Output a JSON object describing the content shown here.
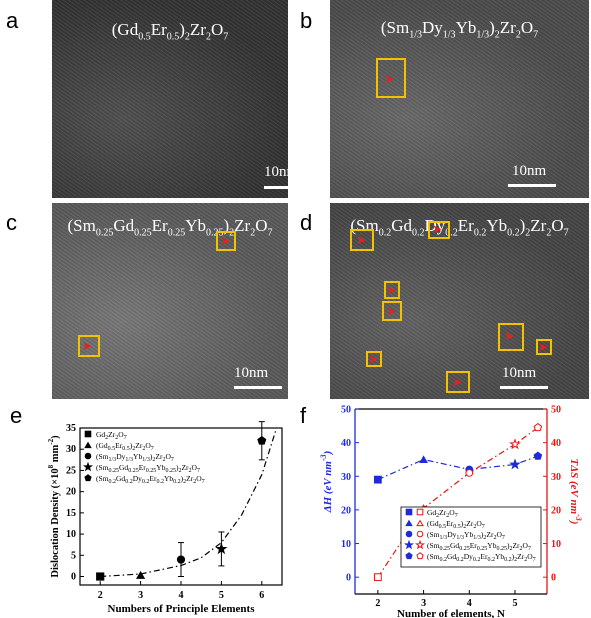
{
  "panels": {
    "a": {
      "letter": "a",
      "title_html": "(Gd<sub>0.5</sub>Er<sub>0.5</sub>)<sub>2</sub>Zr<sub>2</sub>O<sub>7</sub>",
      "scale": "10nm",
      "tone": "#3d3d3d"
    },
    "b": {
      "letter": "b",
      "title_html": "(Sm<sub>1/3</sub>Dy<sub>1/3</sub>Yb<sub>1/3</sub>)<sub>2</sub>Zr<sub>2</sub>O<sub>7</sub>",
      "scale": "10nm",
      "tone": "#595959"
    },
    "c": {
      "letter": "c",
      "title_html": "(Sm<sub>0.25</sub>Gd<sub>0.25</sub>Er<sub>0.25</sub>Yb<sub>0.25</sub>)<sub>2</sub>Zr<sub>2</sub>O<sub>7</sub>",
      "scale": "10nm",
      "tone": "#6a6a6a"
    },
    "d": {
      "letter": "d",
      "title_html": "(Sm<sub>0.2</sub>Gd<sub>0.2</sub>Dy<sub>0.2</sub>Er<sub>0.2</sub>Yb<sub>0.2</sub>)<sub>2</sub>Zr<sub>2</sub>O<sub>7</sub>",
      "scale": "10nm",
      "tone": "#525252"
    },
    "e": {
      "letter": "e"
    },
    "f": {
      "letter": "f"
    }
  },
  "colors": {
    "box": "#f2c200",
    "arrow": "#e8201e",
    "dH": "#1f2bd8",
    "TdS": "#e01818"
  },
  "chart_data": [
    {
      "type": "scatter",
      "ylabel_html": "Dislocation Density (×10<tspan dy='-5' font-size='7'>8</tspan><tspan dy='5'> mm</tspan><tspan dy='-5' font-size='7'>-2</tspan><tspan dy='5'>)</tspan>",
      "xlabel": "Numbers of Principle Elements",
      "xlim": [
        1.5,
        6.5
      ],
      "ylim": [
        -2,
        35
      ],
      "xticks": [
        2,
        3,
        4,
        5,
        6
      ],
      "yticks": [
        0,
        5,
        10,
        15,
        20,
        25,
        30,
        35
      ],
      "series": [
        {
          "name_html": "Gd<tspan font-size='6' dy='2'>2</tspan><tspan dy='-2'>Zr</tspan><tspan font-size='6' dy='2'>2</tspan><tspan dy='-2'>O</tspan><tspan font-size='6' dy='2'>7</tspan>",
          "x": 2,
          "y": 0.0,
          "err": 0.0,
          "marker": "square"
        },
        {
          "name_html": "(Gd<tspan font-size='6' dy='2'>0.5</tspan><tspan dy='-2'>Er</tspan><tspan font-size='6' dy='2'>0.5</tspan><tspan dy='-2'>)</tspan><tspan font-size='6' dy='2'>2</tspan><tspan dy='-2'>Zr</tspan><tspan font-size='6' dy='2'>2</tspan><tspan dy='-2'>O</tspan><tspan font-size='6' dy='2'>7</tspan>",
          "x": 3,
          "y": 0.3,
          "err": 0.0,
          "marker": "triangle"
        },
        {
          "name_html": "(Sm<tspan font-size='6' dy='2'>1/3</tspan><tspan dy='-2'>Dy</tspan><tspan font-size='6' dy='2'>1/3</tspan><tspan dy='-2'>Yb</tspan><tspan font-size='6' dy='2'>1/3</tspan><tspan dy='-2'>)</tspan><tspan font-size='6' dy='2'>2</tspan><tspan dy='-2'>Zr</tspan><tspan font-size='6' dy='2'>2</tspan><tspan dy='-2'>O</tspan><tspan font-size='6' dy='2'>7</tspan>",
          "x": 4,
          "y": 4.0,
          "err": 4.0,
          "marker": "circle"
        },
        {
          "name_html": "(Sm<tspan font-size='6' dy='2'>0.25</tspan><tspan dy='-2'>Gd</tspan><tspan font-size='6' dy='2'>0.25</tspan><tspan dy='-2'>Er</tspan><tspan font-size='6' dy='2'>0.25</tspan><tspan dy='-2'>Yb</tspan><tspan font-size='6' dy='2'>0.25</tspan><tspan dy='-2'>)</tspan><tspan font-size='6' dy='2'>2</tspan><tspan dy='-2'>Zr</tspan><tspan font-size='6' dy='2'>2</tspan><tspan dy='-2'>O</tspan><tspan font-size='6' dy='2'>7</tspan>",
          "x": 5,
          "y": 6.5,
          "err": 4.0,
          "marker": "star"
        },
        {
          "name_html": "(Sm<tspan font-size='6' dy='2'>0.2</tspan><tspan dy='-2'>Gd</tspan><tspan font-size='6' dy='2'>0.2</tspan><tspan dy='-2'>Dy</tspan><tspan font-size='6' dy='2'>0.2</tspan><tspan dy='-2'>Er</tspan><tspan font-size='6' dy='2'>0.2</tspan><tspan dy='-2'>Yb</tspan><tspan font-size='6' dy='2'>0.2</tspan><tspan dy='-2'>)</tspan><tspan font-size='6' dy='2'>2</tspan><tspan dy='-2'>Zr</tspan><tspan font-size='6' dy='2'>2</tspan><tspan dy='-2'>O</tspan><tspan font-size='6' dy='2'>7</tspan>",
          "x": 6,
          "y": 32.0,
          "err": 4.5,
          "marker": "pentagon"
        }
      ],
      "fit": "dash-dot exponential trend line",
      "fit_points": [
        [
          2,
          0.0
        ],
        [
          3,
          0.6
        ],
        [
          4,
          2.6
        ],
        [
          4.5,
          4.4
        ],
        [
          5,
          8.0
        ],
        [
          5.5,
          14.5
        ],
        [
          6,
          24.0
        ],
        [
          6.35,
          34.5
        ]
      ]
    },
    {
      "type": "line",
      "xlabel_html": "Number of elements, N",
      "ylabel_left_html": "ΔH (eV nm<tspan dy='-5' font-size='8'>-3</tspan><tspan dy='5'>)</tspan>",
      "ylabel_right_html": "TΔS (eV nm<tspan dy='-5' font-size='8'>-3</tspan><tspan dy='5'>)</tspan>",
      "xlim": [
        1.5,
        5.7
      ],
      "ylim": [
        -5,
        50
      ],
      "xticks": [
        2,
        3,
        4,
        5
      ],
      "yticks": [
        0,
        10,
        20,
        30,
        40,
        50
      ],
      "series": [
        {
          "name": "dH",
          "x": [
            2,
            3,
            4,
            5,
            5.5
          ],
          "values": [
            29,
            35,
            32,
            33.5,
            36
          ]
        },
        {
          "name": "TdS",
          "x": [
            2,
            3,
            4,
            5,
            5.5
          ],
          "values": [
            0,
            20.5,
            31,
            39.5,
            44.5
          ]
        }
      ],
      "legend_markers": [
        "square",
        "triangle",
        "circle",
        "star",
        "pentagon"
      ]
    }
  ]
}
